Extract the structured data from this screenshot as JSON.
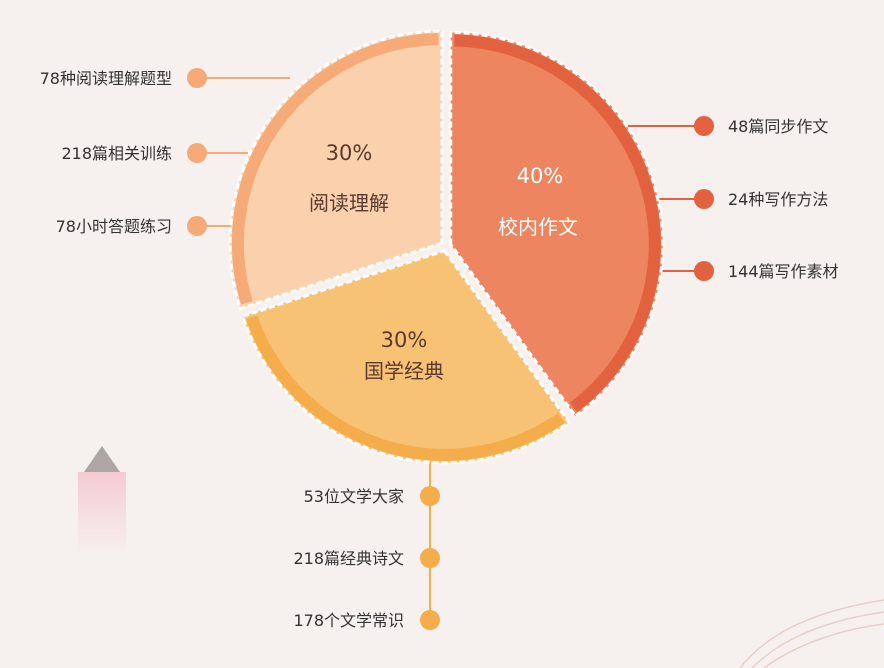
{
  "chart_data": {
    "type": "pie",
    "slices": [
      {
        "label": "校内作文",
        "percent": "40%",
        "value": 40,
        "color": "#ec8560",
        "rim_color": "#e2623f",
        "details": [
          "48篇同步作文",
          "24种写作方法",
          "144篇写作素材"
        ]
      },
      {
        "label": "国学经典",
        "percent": "30%",
        "value": 30,
        "color": "#f8c275",
        "rim_color": "#f4ad4a",
        "details": [
          "53位文学大家",
          "218篇经典诗文",
          "178个文学常识"
        ]
      },
      {
        "label": "阅读理解",
        "percent": "30%",
        "value": 30,
        "color": "#fbd0ac",
        "rim_color": "#f5aa78",
        "details": [
          "78种阅读理解题型",
          "218篇相关训练",
          "78小时答题练习"
        ]
      }
    ],
    "legend": "none"
  }
}
